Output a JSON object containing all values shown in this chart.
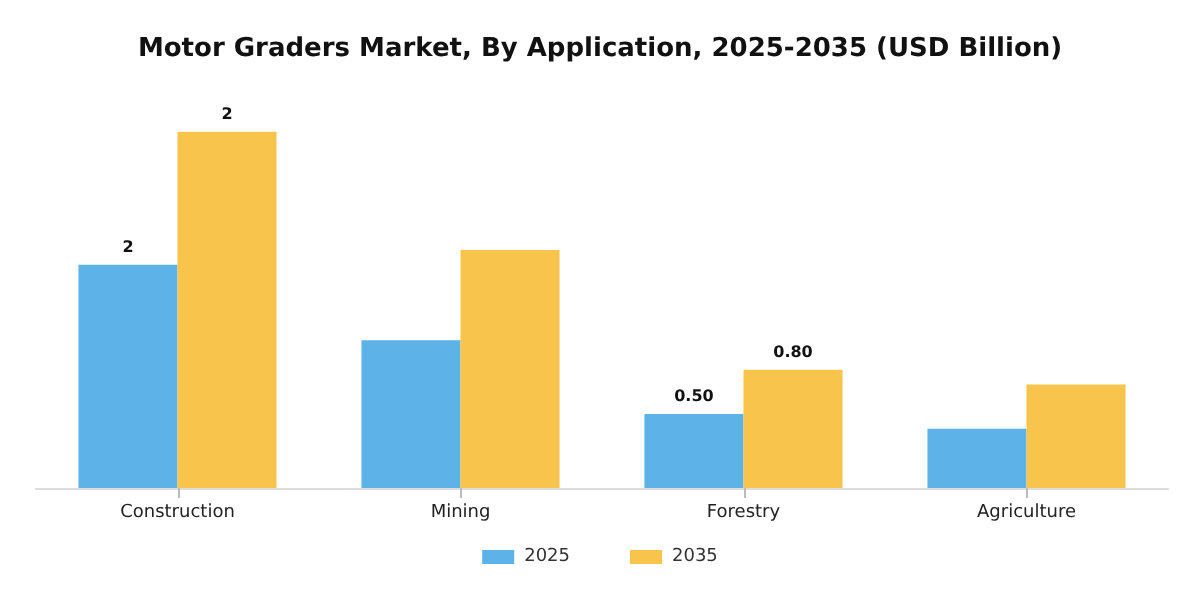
{
  "chart_data": {
    "type": "bar",
    "title": "Motor Graders Market, By Application, 2025-2035 (USD Billion)",
    "categories": [
      "Construction",
      "Mining",
      "Forestry",
      "Agriculture"
    ],
    "series": [
      {
        "name": "2025",
        "color": "#5db3e8",
        "values": [
          1.51,
          1.0,
          0.5,
          0.4
        ],
        "value_labels": [
          "2",
          null,
          "0.50",
          null
        ]
      },
      {
        "name": "2035",
        "color": "#f9c44b",
        "values": [
          2.41,
          1.61,
          0.8,
          0.7
        ],
        "value_labels": [
          "2",
          null,
          "0.80",
          null
        ]
      }
    ],
    "legend": "bottom"
  }
}
